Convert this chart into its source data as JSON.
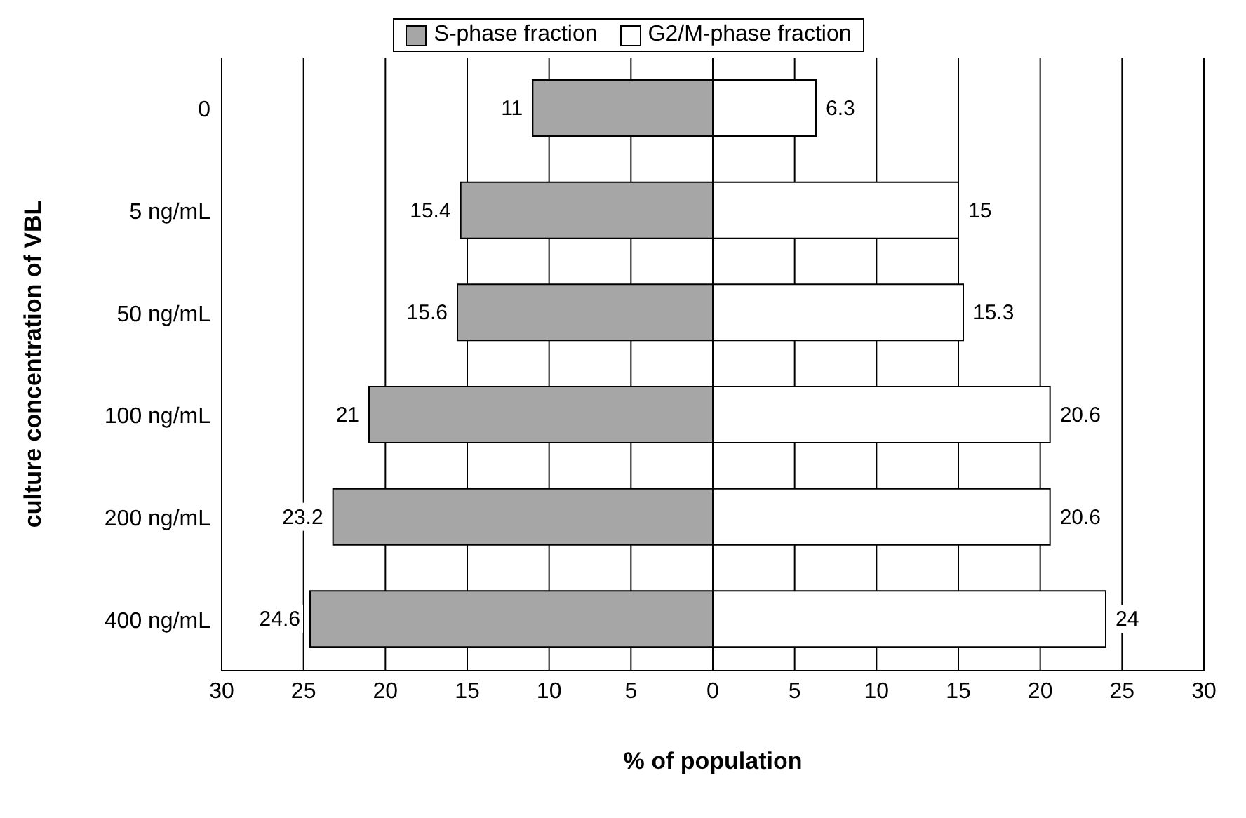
{
  "chart_data": {
    "type": "bar",
    "orientation": "horizontal",
    "xlabel": "% of population",
    "ylabel": "culture concentration of VBL",
    "categories": [
      "0",
      "5 ng/mL",
      "50 ng/mL",
      "100 ng/mL",
      "200 ng/mL",
      "400 ng/mL"
    ],
    "series": [
      {
        "name": "S-phase fraction",
        "color": "#a6a6a6",
        "values": [
          11,
          15.4,
          15.6,
          21,
          23.2,
          24.6
        ],
        "base": [
          -11,
          -15.4,
          -15.6,
          -21,
          -23.2,
          -24.6
        ],
        "value_labels": [
          "11",
          "15.4",
          "15.6",
          "21",
          "23.2",
          "24.6"
        ]
      },
      {
        "name": "G2/M-phase fraction",
        "color": "#ffffff",
        "values": [
          6.3,
          15,
          15.3,
          20.6,
          20.6,
          24
        ],
        "value_labels": [
          "6.3",
          "15",
          "15.3",
          "20.6",
          "20.6",
          "24"
        ]
      }
    ],
    "xlim": [
      -30,
      30
    ],
    "xticks": [
      {
        "value": -30,
        "label": "30"
      },
      {
        "value": -25,
        "label": "25"
      },
      {
        "value": -20,
        "label": "20"
      },
      {
        "value": -15,
        "label": "15"
      },
      {
        "value": -10,
        "label": "10"
      },
      {
        "value": -5,
        "label": "5"
      },
      0,
      5,
      10,
      15,
      20,
      25,
      30
    ],
    "grid": "x",
    "legend": "top"
  }
}
